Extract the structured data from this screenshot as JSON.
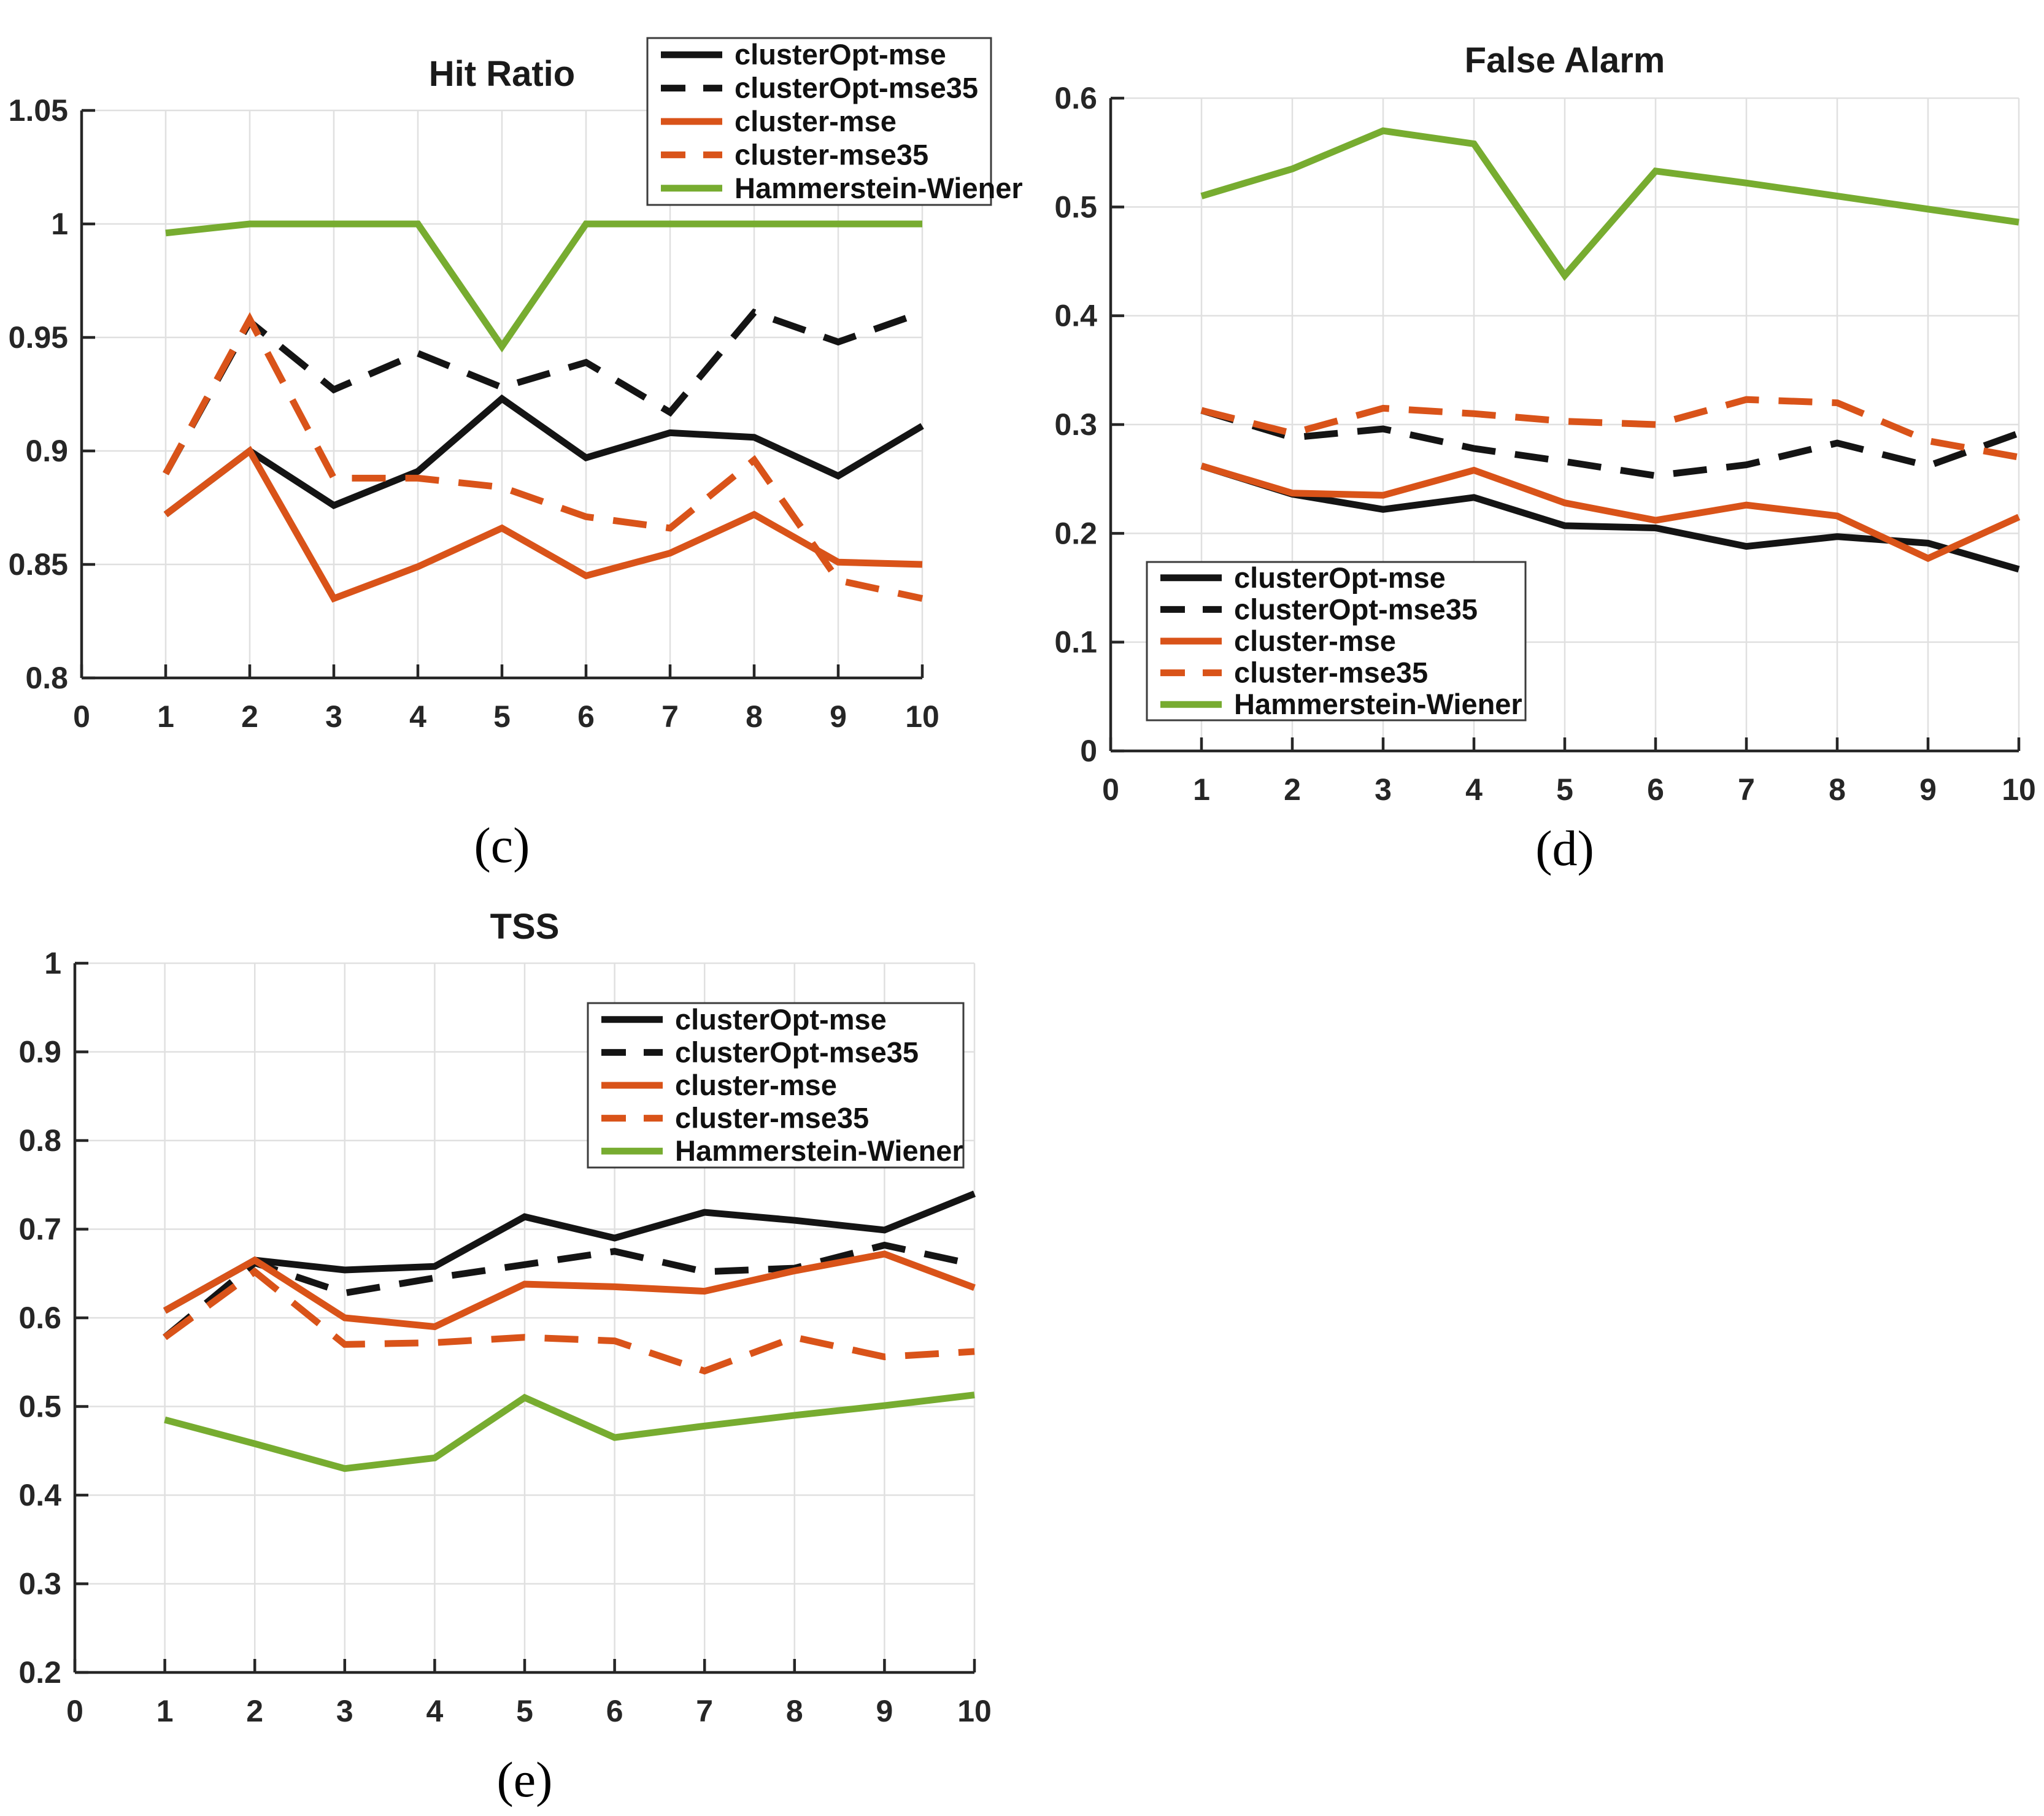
{
  "figure": {
    "background": "#ffffff",
    "colors": {
      "black": "#141414",
      "orange": "#D95319",
      "green": "#77AC30",
      "grid": "#E0E0E0",
      "axis": "#262626",
      "legend_border": "#3c3c3c",
      "legend_bg": "#ffffff"
    },
    "legend_labels": [
      "clusterOpt-mse",
      "clusterOpt-mse35",
      "cluster-mse",
      "cluster-mse35",
      "Hammerstein-Wiener"
    ]
  },
  "chart_data": [
    {
      "type": "line",
      "id": "hit-ratio",
      "title": "Hit Ratio",
      "sublabel": "(c)",
      "xlabel": "",
      "ylabel": "",
      "x": [
        1,
        2,
        3,
        4,
        5,
        6,
        7,
        8,
        9,
        10
      ],
      "xlim": [
        0,
        10
      ],
      "ylim": [
        0.8,
        1.05
      ],
      "x_ticks": [
        0,
        1,
        2,
        3,
        4,
        5,
        6,
        7,
        8,
        9,
        10
      ],
      "x_tick_labels": [
        "0",
        "1",
        "2",
        "3",
        "4",
        "5",
        "6",
        "7",
        "8",
        "9",
        "10"
      ],
      "y_ticks": [
        0.8,
        0.85,
        0.9,
        0.95,
        1,
        1.05
      ],
      "y_tick_labels": [
        "0.8",
        "0.85",
        "0.9",
        "0.95",
        "1",
        "1.05"
      ],
      "grid": true,
      "legend_position": "top-right",
      "series": [
        {
          "name": "clusterOpt-mse",
          "color": "black",
          "dash": false,
          "values": [
            0.872,
            0.9,
            0.876,
            0.891,
            0.923,
            0.897,
            0.908,
            0.906,
            0.889,
            0.911
          ]
        },
        {
          "name": "clusterOpt-mse35",
          "color": "black",
          "dash": true,
          "values": [
            0.89,
            0.957,
            0.927,
            0.943,
            0.928,
            0.939,
            0.917,
            0.961,
            0.948,
            0.961
          ]
        },
        {
          "name": "cluster-mse",
          "color": "orange",
          "dash": false,
          "values": [
            0.872,
            0.9,
            0.835,
            0.849,
            0.866,
            0.845,
            0.855,
            0.872,
            0.851,
            0.85
          ]
        },
        {
          "name": "cluster-mse35",
          "color": "orange",
          "dash": true,
          "values": [
            0.89,
            0.958,
            0.888,
            0.888,
            0.884,
            0.871,
            0.866,
            0.896,
            0.843,
            0.835
          ]
        },
        {
          "name": "Hammerstein-Wiener",
          "color": "green",
          "dash": false,
          "values": [
            0.996,
            1.0,
            1.0,
            1.0,
            0.946,
            1.0,
            1.0,
            1.0,
            1.0,
            1.0
          ]
        }
      ]
    },
    {
      "type": "line",
      "id": "false-alarm",
      "title": "False Alarm",
      "sublabel": "(d)",
      "xlabel": "",
      "ylabel": "",
      "x": [
        1,
        2,
        3,
        4,
        5,
        6,
        7,
        8,
        9,
        10
      ],
      "xlim": [
        0,
        10
      ],
      "ylim": [
        0,
        0.6
      ],
      "x_ticks": [
        0,
        1,
        2,
        3,
        4,
        5,
        6,
        7,
        8,
        9,
        10
      ],
      "x_tick_labels": [
        "0",
        "1",
        "2",
        "3",
        "4",
        "5",
        "6",
        "7",
        "8",
        "9",
        "10"
      ],
      "y_ticks": [
        0,
        0.1,
        0.2,
        0.3,
        0.4,
        0.5,
        0.6
      ],
      "y_tick_labels": [
        "0",
        "0.1",
        "0.2",
        "0.3",
        "0.4",
        "0.5",
        "0.6"
      ],
      "grid": true,
      "legend_position": "bottom-left",
      "series": [
        {
          "name": "clusterOpt-mse",
          "color": "black",
          "dash": false,
          "values": [
            0.262,
            0.236,
            0.222,
            0.233,
            0.207,
            0.205,
            0.188,
            0.197,
            0.191,
            0.167
          ]
        },
        {
          "name": "clusterOpt-mse35",
          "color": "black",
          "dash": true,
          "values": [
            0.313,
            0.288,
            0.296,
            0.278,
            0.266,
            0.253,
            0.263,
            0.283,
            0.262,
            0.292
          ]
        },
        {
          "name": "cluster-mse",
          "color": "orange",
          "dash": false,
          "values": [
            0.262,
            0.237,
            0.235,
            0.258,
            0.228,
            0.212,
            0.226,
            0.216,
            0.177,
            0.215
          ]
        },
        {
          "name": "cluster-mse35",
          "color": "orange",
          "dash": true,
          "values": [
            0.313,
            0.292,
            0.315,
            0.31,
            0.303,
            0.3,
            0.323,
            0.32,
            0.285,
            0.27
          ]
        },
        {
          "name": "Hammerstein-Wiener",
          "color": "green",
          "dash": false,
          "values": [
            0.51,
            0.535,
            0.57,
            0.558,
            0.437,
            0.533,
            0.522,
            0.51,
            0.498,
            0.486
          ]
        }
      ]
    },
    {
      "type": "line",
      "id": "tss",
      "title": "TSS",
      "sublabel": "(e)",
      "xlabel": "",
      "ylabel": "",
      "x": [
        1,
        2,
        3,
        4,
        5,
        6,
        7,
        8,
        9,
        10
      ],
      "xlim": [
        0,
        10
      ],
      "ylim": [
        0.2,
        1.0
      ],
      "x_ticks": [
        0,
        1,
        2,
        3,
        4,
        5,
        6,
        7,
        8,
        9,
        10
      ],
      "x_tick_labels": [
        "0",
        "1",
        "2",
        "3",
        "4",
        "5",
        "6",
        "7",
        "8",
        "9",
        "10"
      ],
      "y_ticks": [
        0.2,
        0.3,
        0.4,
        0.5,
        0.6,
        0.7,
        0.8,
        0.9,
        1
      ],
      "y_tick_labels": [
        "0.2",
        "0.3",
        "0.4",
        "0.5",
        "0.6",
        "0.7",
        "0.8",
        "0.9",
        "1"
      ],
      "grid": true,
      "legend_position": "top-right-inside",
      "series": [
        {
          "name": "clusterOpt-mse",
          "color": "black",
          "dash": false,
          "values": [
            0.608,
            0.665,
            0.654,
            0.658,
            0.714,
            0.69,
            0.719,
            0.71,
            0.699,
            0.74
          ]
        },
        {
          "name": "clusterOpt-mse35",
          "color": "black",
          "dash": true,
          "values": [
            0.578,
            0.662,
            0.628,
            0.645,
            0.66,
            0.675,
            0.652,
            0.656,
            0.682,
            0.66
          ]
        },
        {
          "name": "cluster-mse",
          "color": "orange",
          "dash": false,
          "values": [
            0.608,
            0.665,
            0.6,
            0.59,
            0.638,
            0.635,
            0.63,
            0.653,
            0.672,
            0.634
          ]
        },
        {
          "name": "cluster-mse35",
          "color": "orange",
          "dash": true,
          "values": [
            0.578,
            0.652,
            0.57,
            0.572,
            0.578,
            0.574,
            0.54,
            0.578,
            0.556,
            0.562
          ]
        },
        {
          "name": "Hammerstein-Wiener",
          "color": "green",
          "dash": false,
          "values": [
            0.485,
            0.458,
            0.43,
            0.442,
            0.51,
            0.465,
            0.478,
            0.49,
            0.501,
            0.513
          ]
        }
      ]
    }
  ]
}
